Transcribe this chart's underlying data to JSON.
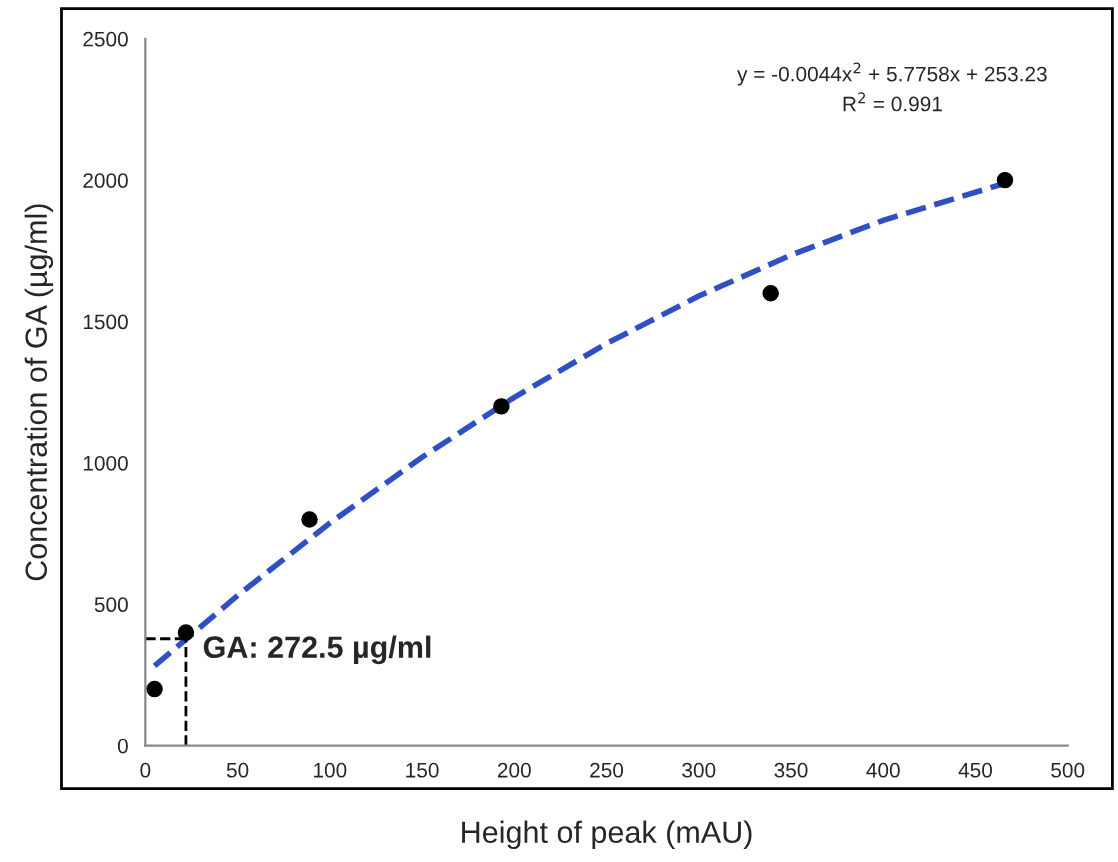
{
  "chart_data": {
    "type": "scatter",
    "xlabel": "Height of peak (mAU)",
    "ylabel": "Concentration of GA (µg/ml)",
    "xlim": [
      0,
      500
    ],
    "ylim": [
      0,
      2500
    ],
    "xticks": [
      0,
      50,
      100,
      150,
      200,
      250,
      300,
      350,
      400,
      450,
      500
    ],
    "yticks": [
      0,
      500,
      1000,
      1500,
      2000,
      2500
    ],
    "grid": false,
    "legend": false,
    "marker": "circle",
    "series": [
      {
        "color": "#000000",
        "x": [
          5,
          22,
          89,
          193,
          339,
          466
        ],
        "values": [
          200,
          400,
          800,
          1200,
          1600,
          2000
        ]
      },
      {
        "type": "line",
        "marker": "none",
        "color": "#2f4fc4",
        "line_style": "dashed",
        "x": [
          5,
          50,
          100,
          150,
          200,
          250,
          300,
          350,
          400,
          466
        ],
        "values": [
          282,
          531,
          787,
          1020,
          1232,
          1422,
          1590,
          1735,
          1858,
          1989
        ]
      },
      {
        "type": "line",
        "marker": "none",
        "color": "#000000",
        "line_style": "dashed",
        "x": [
          0,
          22
        ],
        "values": [
          378,
          378
        ]
      },
      {
        "type": "line",
        "marker": "none",
        "color": "#000000",
        "line_style": "dashed",
        "x": [
          22,
          22
        ],
        "values": [
          0,
          378
        ]
      }
    ],
    "annotations": [
      {
        "text": "GA: 272.5 µg/ml",
        "x": 22,
        "y": 378
      },
      "y = -0.0044x$^{2}$ + 5.7758x + 253.23",
      "R$^{2}$ = 0.991"
    ]
  }
}
